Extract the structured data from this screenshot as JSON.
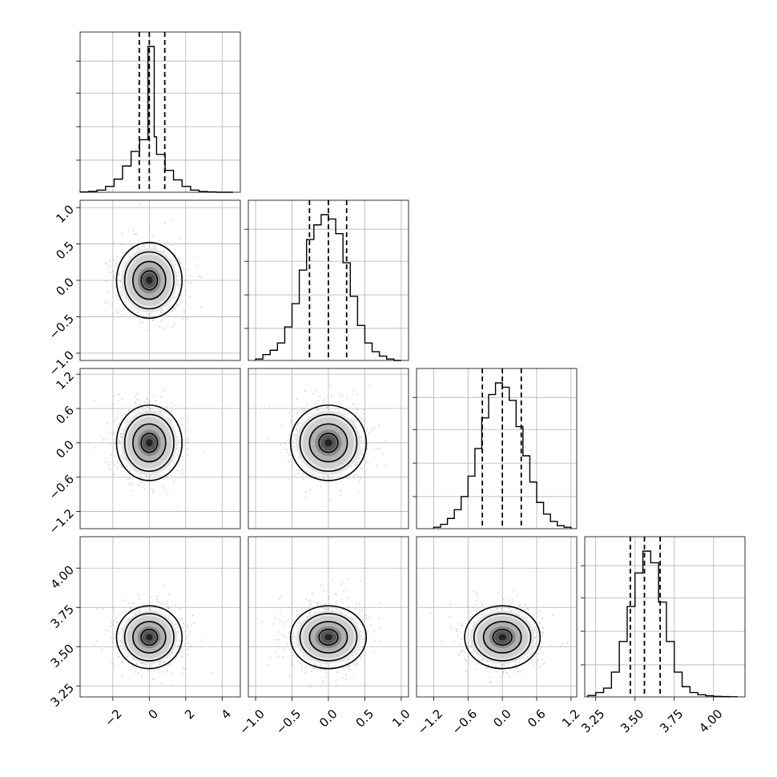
{
  "chart_data": {
    "type": "corner",
    "grid": true,
    "parameters": [
      {
        "range": [
          -3.8,
          5.0
        ],
        "ticks": [
          -2,
          0,
          2,
          4
        ],
        "tick_labels": [
          "−2",
          "0",
          "2",
          "4"
        ],
        "center": 0.0,
        "sigma": 0.9,
        "quantiles": [
          -0.55,
          0.0,
          0.85
        ],
        "hist_bins": {
          "edges": [
            -3.8,
            -3.33,
            -2.87,
            -2.4,
            -1.93,
            -1.47,
            -1.0,
            -0.53,
            -0.07,
            0.27,
            0.4,
            0.53,
            0.87,
            1.33,
            1.8,
            2.27,
            2.73,
            3.2,
            3.67,
            4.13,
            4.6
          ],
          "counts": [
            0.002,
            0.006,
            0.015,
            0.04,
            0.09,
            0.18,
            0.28,
            0.36,
            1.0,
            0.38,
            0.26,
            0.26,
            0.15,
            0.085,
            0.04,
            0.015,
            0.005,
            0.002,
            0.0,
            0.0
          ]
        }
      },
      {
        "range": [
          -1.1,
          1.1
        ],
        "ticks": [
          -1.0,
          -0.5,
          0.0,
          0.5,
          1.0
        ],
        "tick_labels": [
          "−1.0",
          "−0.5",
          "0.0",
          "0.5",
          "1.0"
        ],
        "center": 0.0,
        "sigma": 0.26,
        "quantiles": [
          -0.26,
          0.0,
          0.25
        ],
        "hist_bins": {
          "edges": [
            -1.0,
            -0.9,
            -0.8,
            -0.7,
            -0.6,
            -0.5,
            -0.4,
            -0.3,
            -0.2,
            -0.1,
            0.0,
            0.1,
            0.2,
            0.3,
            0.4,
            0.5,
            0.6,
            0.7,
            0.8,
            0.9,
            1.0
          ],
          "counts": [
            0.01,
            0.04,
            0.07,
            0.12,
            0.23,
            0.39,
            0.62,
            0.83,
            0.93,
            1.0,
            0.97,
            0.87,
            0.67,
            0.44,
            0.24,
            0.12,
            0.06,
            0.03,
            0.01,
            0.0
          ]
        }
      },
      {
        "range": [
          -1.5,
          1.3
        ],
        "ticks": [
          -1.2,
          -0.6,
          0.0,
          0.6,
          1.2
        ],
        "tick_labels": [
          "−1.2",
          "−0.6",
          "0.0",
          "0.6",
          "1.2"
        ],
        "center": 0.0,
        "sigma": 0.33,
        "quantiles": [
          -0.35,
          0.0,
          0.33
        ],
        "hist_bins": {
          "edges": [
            -1.2,
            -1.08,
            -0.96,
            -0.84,
            -0.72,
            -0.6,
            -0.48,
            -0.36,
            -0.24,
            -0.12,
            0.0,
            0.12,
            0.24,
            0.36,
            0.48,
            0.6,
            0.72,
            0.84,
            0.96,
            1.08,
            1.2
          ],
          "counts": [
            0.01,
            0.03,
            0.07,
            0.13,
            0.22,
            0.36,
            0.55,
            0.76,
            0.92,
            1.0,
            0.97,
            0.88,
            0.7,
            0.5,
            0.32,
            0.18,
            0.1,
            0.05,
            0.02,
            0.01
          ]
        }
      },
      {
        "range": [
          3.18,
          4.2
        ],
        "ticks": [
          3.25,
          3.5,
          3.75,
          4.0
        ],
        "tick_labels": [
          "3.25",
          "3.50",
          "3.75",
          "4.00"
        ],
        "center": 3.56,
        "sigma": 0.1,
        "quantiles": [
          3.47,
          3.56,
          3.66
        ],
        "hist_bins": {
          "edges": [
            3.2,
            3.25,
            3.3,
            3.35,
            3.4,
            3.45,
            3.5,
            3.55,
            3.6,
            3.65,
            3.7,
            3.75,
            3.8,
            3.85,
            3.9,
            3.95,
            4.0,
            4.05,
            4.1,
            4.15
          ],
          "counts": [
            0.01,
            0.03,
            0.06,
            0.17,
            0.38,
            0.62,
            0.85,
            1.0,
            0.92,
            0.65,
            0.38,
            0.17,
            0.07,
            0.03,
            0.015,
            0.008,
            0.004,
            0.002,
            0.001
          ]
        }
      }
    ]
  }
}
